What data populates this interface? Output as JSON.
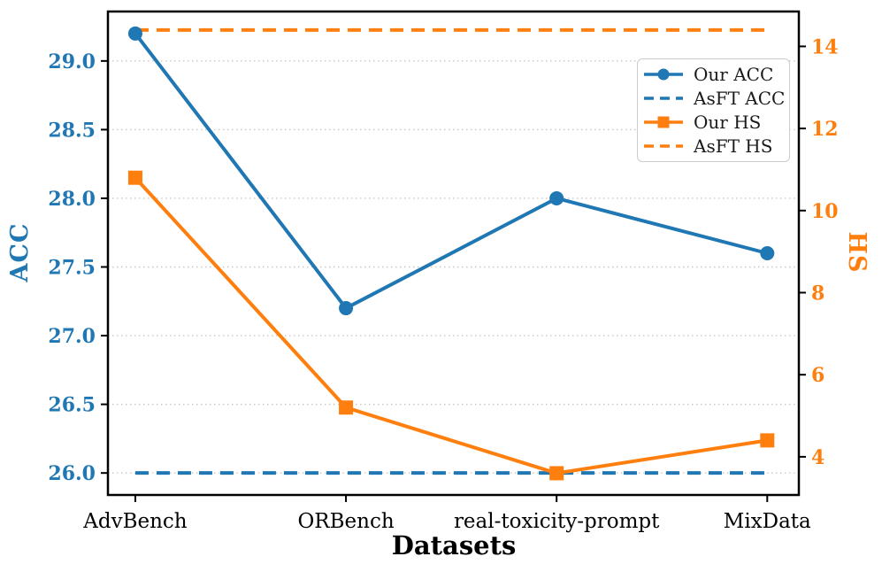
{
  "chart_data": {
    "type": "line",
    "title": "",
    "xlabel": "Datasets",
    "categories": [
      "AdvBench",
      "ORBench",
      "real-toxicity-prompt",
      "MixData"
    ],
    "xlim": [
      -0.13,
      3.15
    ],
    "left_axis": {
      "label": "ACC",
      "color": "#1f77b4",
      "ticks": [
        26.0,
        26.5,
        27.0,
        27.5,
        28.0,
        28.5,
        29.0
      ],
      "tick_labels": [
        "26.0",
        "26.5",
        "27.0",
        "27.5",
        "28.0",
        "28.5",
        "29.0"
      ],
      "ylim": [
        25.84,
        29.36
      ]
    },
    "right_axis": {
      "label": "HS",
      "color": "#ff7f0e",
      "ticks": [
        4,
        6,
        8,
        10,
        12,
        14
      ],
      "tick_labels": [
        "4",
        "6",
        "8",
        "10",
        "12",
        "14"
      ],
      "ylim": [
        3.07,
        14.85
      ]
    },
    "grid": {
      "axis": "y",
      "style": "dotted",
      "color": "#c8c8c8",
      "follows": "left_axis_ticks"
    },
    "legend_position": "upper-right-inside",
    "series": [
      {
        "name": "Our ACC",
        "axis": "left",
        "color": "#1f77b4",
        "line_style": "solid",
        "marker": "circle",
        "values": [
          29.2,
          27.2,
          28.0,
          27.6
        ]
      },
      {
        "name": "AsFT ACC",
        "axis": "left",
        "color": "#1f77b4",
        "line_style": "dashed",
        "marker": "none",
        "values": [
          26.0,
          26.0,
          26.0,
          26.0
        ]
      },
      {
        "name": "Our HS",
        "axis": "right",
        "color": "#ff7f0e",
        "line_style": "solid",
        "marker": "square",
        "values": [
          10.8,
          5.2,
          3.6,
          4.4
        ]
      },
      {
        "name": "AsFT HS",
        "axis": "right",
        "color": "#ff7f0e",
        "line_style": "dashed",
        "marker": "none",
        "values": [
          14.4,
          14.4,
          14.4,
          14.4
        ]
      }
    ]
  }
}
